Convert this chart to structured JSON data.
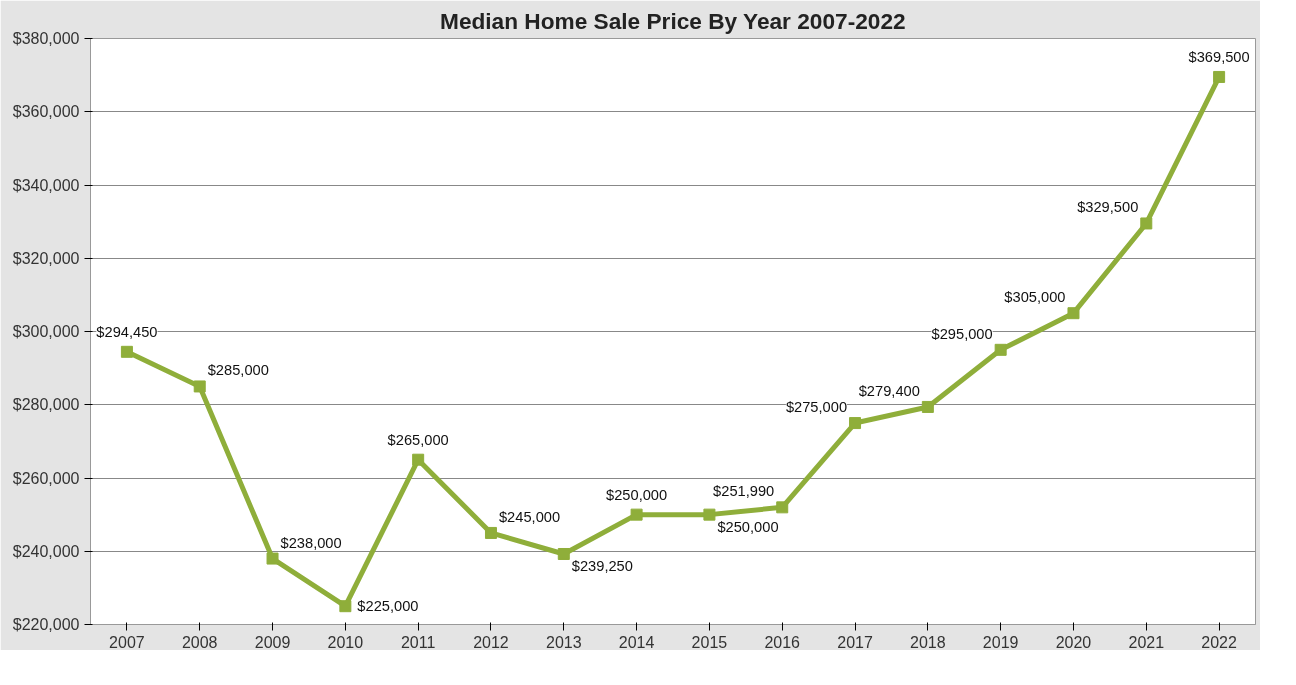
{
  "chart_data": {
    "type": "line",
    "title": "Median Home Sale Price By Year 2007-2022",
    "categories": [
      "2007",
      "2008",
      "2009",
      "2010",
      "2011",
      "2012",
      "2013",
      "2014",
      "2015",
      "2016",
      "2017",
      "2018",
      "2019",
      "2020",
      "2021",
      "2022"
    ],
    "values": [
      294450,
      285000,
      238000,
      225000,
      265000,
      245000,
      239250,
      250000,
      250000,
      251990,
      275000,
      279400,
      295000,
      305000,
      329500,
      369500
    ],
    "value_labels": [
      "$294,450",
      "$285,000",
      "$238,000",
      "$225,000",
      "$265,000",
      "$245,000",
      "$239,250",
      "$250,000",
      "$250,000",
      "$251,990",
      "$275,000",
      "$279,400",
      "$295,000",
      "$305,000",
      "$329,500",
      "$369,500"
    ],
    "color": "#8fae3a",
    "ylim": [
      220000,
      380000
    ],
    "yticks": [
      {
        "value": 220000,
        "label": "$220,000"
      },
      {
        "value": 240000,
        "label": "$240,000"
      },
      {
        "value": 260000,
        "label": "$260,000"
      },
      {
        "value": 280000,
        "label": "$280,000"
      },
      {
        "value": 300000,
        "label": "$300,000"
      },
      {
        "value": 320000,
        "label": "$320,000"
      },
      {
        "value": 340000,
        "label": "$340,000"
      },
      {
        "value": 360000,
        "label": "$360,000"
      },
      {
        "value": 380000,
        "label": "$380,000"
      }
    ],
    "grid": "y",
    "marker": "square",
    "line_style": "solid"
  }
}
